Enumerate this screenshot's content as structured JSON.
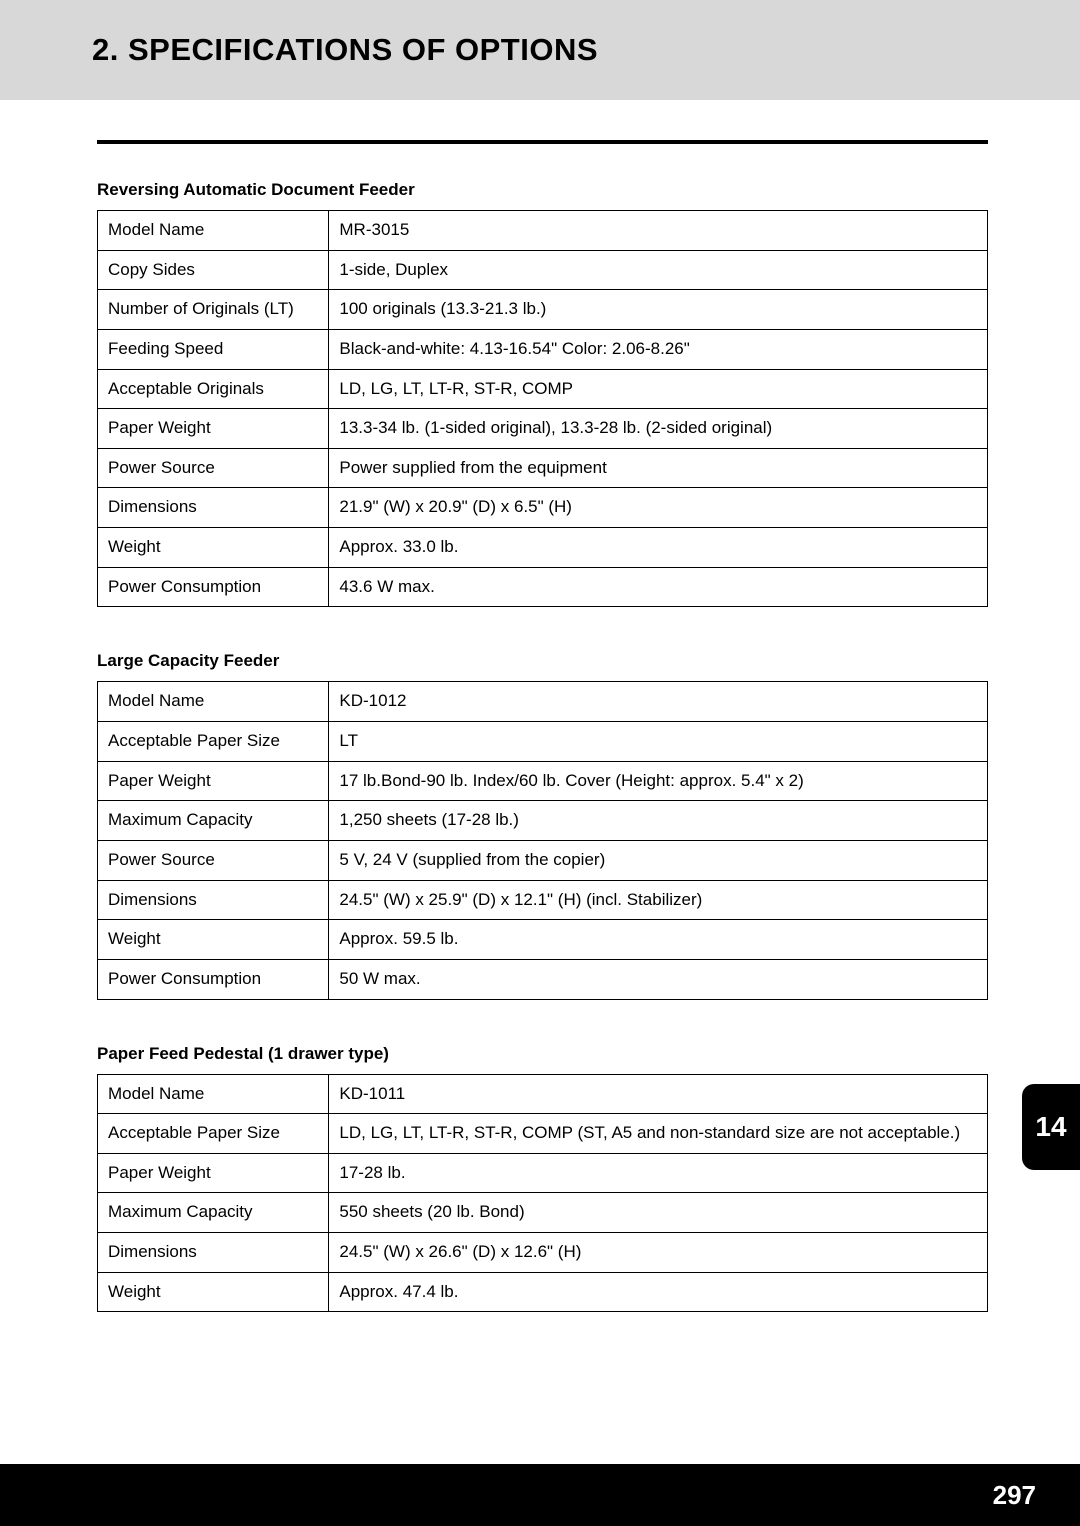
{
  "header": {
    "title": "2. SPECIFICATIONS OF OPTIONS"
  },
  "chapterTab": "14",
  "pageNumber": "297",
  "sections": [
    {
      "title": "Reversing Automatic Document Feeder",
      "rows": [
        {
          "label": "Model Name",
          "value": "MR-3015"
        },
        {
          "label": "Copy Sides",
          "value": "1-side, Duplex"
        },
        {
          "label": "Number of Originals (LT)",
          "value": "100 originals (13.3-21.3 lb.)"
        },
        {
          "label": "Feeding Speed",
          "value": "Black-and-white: 4.13-16.54\"     Color: 2.06-8.26\""
        },
        {
          "label": "Acceptable Originals",
          "value": "LD, LG, LT, LT-R, ST-R, COMP"
        },
        {
          "label": "Paper Weight",
          "value": "13.3-34 lb. (1-sided original), 13.3-28 lb. (2-sided original)"
        },
        {
          "label": "Power Source",
          "value": "Power supplied from the equipment"
        },
        {
          "label": "Dimensions",
          "value": "21.9\" (W) x 20.9\" (D) x 6.5\" (H)"
        },
        {
          "label": "Weight",
          "value": "Approx. 33.0 lb."
        },
        {
          "label": "Power Consumption",
          "value": "43.6 W max."
        }
      ]
    },
    {
      "title": "Large Capacity Feeder",
      "rows": [
        {
          "label": "Model Name",
          "value": "KD-1012"
        },
        {
          "label": "Acceptable Paper Size",
          "value": "LT"
        },
        {
          "label": "Paper Weight",
          "value": "17 lb.Bond-90 lb. Index/60 lb. Cover (Height: approx. 5.4\" x 2)"
        },
        {
          "label": "Maximum Capacity",
          "value": "1,250 sheets (17-28 lb.)"
        },
        {
          "label": "Power Source",
          "value": "5 V, 24 V (supplied from the copier)"
        },
        {
          "label": "Dimensions",
          "value": "24.5\" (W) x 25.9\" (D) x 12.1\" (H) (incl. Stabilizer)"
        },
        {
          "label": "Weight",
          "value": "Approx. 59.5 lb."
        },
        {
          "label": "Power Consumption",
          "value": "50 W max."
        }
      ]
    },
    {
      "title": "Paper Feed Pedestal (1 drawer type)",
      "rows": [
        {
          "label": "Model Name",
          "value": "KD-1011"
        },
        {
          "label": "Acceptable Paper Size",
          "value": "LD, LG, LT, LT-R, ST-R, COMP (ST, A5 and non-standard size are not acceptable.)"
        },
        {
          "label": "Paper Weight",
          "value": "17-28 lb."
        },
        {
          "label": "Maximum Capacity",
          "value": "550 sheets (20 lb. Bond)"
        },
        {
          "label": "Dimensions",
          "value": "24.5\" (W) x 26.6\" (D) x 12.6\" (H)"
        },
        {
          "label": "Weight",
          "value": "Approx. 47.4 lb."
        }
      ]
    }
  ]
}
